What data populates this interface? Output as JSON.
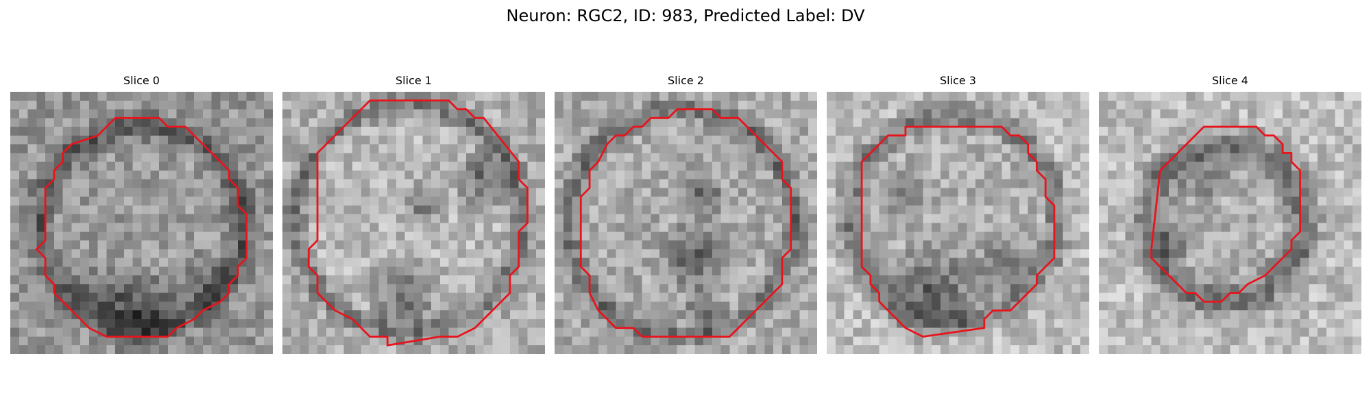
{
  "figure": {
    "title": "Neuron: RGC2, ID: 983, Predicted Label: DV",
    "outline_color": "#e8141c"
  },
  "panels": [
    {
      "title": "Slice 0",
      "image_alt": "grayscale microscopy slice with red contour",
      "outline": "circular ring with dark lower rim"
    },
    {
      "title": "Slice 1",
      "image_alt": "grayscale microscopy slice with red contour",
      "outline": "large octagonal contour with dark ring"
    },
    {
      "title": "Slice 2",
      "image_alt": "grayscale microscopy slice with red contour",
      "outline": "octagonal contour with dark central streak"
    },
    {
      "title": "Slice 3",
      "image_alt": "grayscale microscopy slice with red contour",
      "outline": "rounded contour with dark lower region"
    },
    {
      "title": "Slice 4",
      "image_alt": "grayscale microscopy slice with red contour",
      "outline": "smaller contour around dark ring"
    }
  ]
}
